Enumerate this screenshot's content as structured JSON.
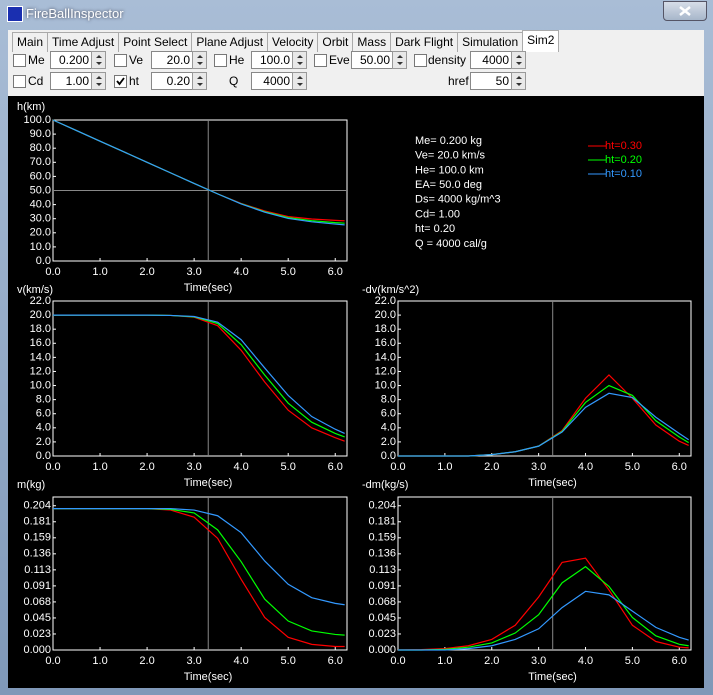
{
  "window": {
    "title": "FireBallInspector"
  },
  "tabs": {
    "items": [
      "Main",
      "Time Adjust",
      "Point Select",
      "Plane Adjust",
      "Velocity",
      "Orbit",
      "Mass",
      "Dark Flight",
      "Simulation",
      "Sim2"
    ],
    "active": 9
  },
  "controls": [
    {
      "label": "Me",
      "value": "0.200",
      "checked": false
    },
    {
      "label": "Ve",
      "value": "20.0",
      "checked": false
    },
    {
      "label": "He",
      "value": "100.0",
      "checked": false
    },
    {
      "label": "Eve",
      "value": "50.00",
      "checked": false
    },
    {
      "label": "density",
      "value": "4000",
      "checked": false
    },
    {
      "label": "Cd",
      "value": "1.00",
      "checked": false
    },
    {
      "label": "ht",
      "value": "0.20",
      "checked": true
    },
    {
      "label": "Q",
      "value": "4000"
    },
    {
      "label": "href",
      "value": "50"
    }
  ],
  "chart_data": [
    {
      "type": "line",
      "ylabel": "h(km)",
      "xlabel": "Time(sec)",
      "xlim": [
        0,
        6.25
      ],
      "ylim": [
        0,
        100
      ],
      "xticks": [
        {
          "value": 0,
          "label": "0.0"
        },
        {
          "value": 1,
          "label": "1.0"
        },
        {
          "value": 2,
          "label": "2.0"
        },
        {
          "value": 3,
          "label": "3.0"
        },
        {
          "value": 4,
          "label": "4.0"
        },
        {
          "value": 5,
          "label": "5.0"
        },
        {
          "value": 6,
          "label": "6.0"
        }
      ],
      "yticks": [
        {
          "value": 0,
          "label": "0.0"
        },
        {
          "value": 10,
          "label": "10.0"
        },
        {
          "value": 20,
          "label": "20.0"
        },
        {
          "value": 30,
          "label": "30.0"
        },
        {
          "value": 40,
          "label": "40.0"
        },
        {
          "value": 50,
          "label": "50.0"
        },
        {
          "value": 60,
          "label": "60.0"
        },
        {
          "value": 70,
          "label": "70.0"
        },
        {
          "value": 80,
          "label": "80.0"
        },
        {
          "value": 90,
          "label": "90.0"
        },
        {
          "value": 100,
          "label": "100.0"
        }
      ],
      "cursor_x": 3.3,
      "cursor_y": 50,
      "annotations": [
        "Me= 0.200 kg",
        "Ve= 20.0 km/s",
        "He= 100.0 km",
        "EA= 50.0 deg",
        "Ds= 4000 kg/m^3",
        "Cd= 1.00",
        "ht= 0.20",
        "Q = 4000 cal/g"
      ],
      "x": [
        0,
        0.5,
        1,
        1.5,
        2,
        2.5,
        3,
        3.5,
        4,
        4.5,
        5,
        5.5,
        6,
        6.2
      ],
      "series": [
        {
          "name": "ht=0.30",
          "color": "#ff0000",
          "values": [
            100,
            92.5,
            85,
            77.5,
            70,
            62.5,
            55,
            47.6,
            40.8,
            35.5,
            31.5,
            29.8,
            28.8,
            28.5
          ]
        },
        {
          "name": "ht=0.20",
          "color": "#00ff00",
          "values": [
            100,
            92.5,
            85,
            77.5,
            70,
            62.5,
            55,
            47.6,
            40.6,
            35,
            30.8,
            28.6,
            27.2,
            26.8
          ]
        },
        {
          "name": "ht=0.10",
          "color": "#3399ff",
          "values": [
            100,
            92.5,
            85,
            77.5,
            70,
            62.5,
            55,
            47.6,
            40.5,
            34.6,
            30.2,
            27.8,
            26.2,
            25.6
          ]
        }
      ]
    },
    {
      "type": "line",
      "ylabel": "v(km/s)",
      "xlabel": "Time(sec)",
      "xlim": [
        0,
        6.25
      ],
      "ylim": [
        0,
        22
      ],
      "xticks": [
        {
          "value": 0,
          "label": "0.0"
        },
        {
          "value": 1,
          "label": "1.0"
        },
        {
          "value": 2,
          "label": "2.0"
        },
        {
          "value": 3,
          "label": "3.0"
        },
        {
          "value": 4,
          "label": "4.0"
        },
        {
          "value": 5,
          "label": "5.0"
        },
        {
          "value": 6,
          "label": "6.0"
        }
      ],
      "yticks": [
        {
          "value": 0,
          "label": "0.0"
        },
        {
          "value": 2,
          "label": "2.0"
        },
        {
          "value": 4,
          "label": "4.0"
        },
        {
          "value": 6,
          "label": "6.0"
        },
        {
          "value": 8,
          "label": "8.0"
        },
        {
          "value": 10,
          "label": "10.0"
        },
        {
          "value": 12,
          "label": "12.0"
        },
        {
          "value": 14,
          "label": "14.0"
        },
        {
          "value": 16,
          "label": "16.0"
        },
        {
          "value": 18,
          "label": "18.0"
        },
        {
          "value": 20,
          "label": "20.0"
        },
        {
          "value": 22,
          "label": "22.0"
        }
      ],
      "cursor_x": 3.3,
      "x": [
        0,
        0.5,
        1,
        1.5,
        2,
        2.5,
        3,
        3.5,
        4,
        4.5,
        5,
        5.5,
        6,
        6.2
      ],
      "series": [
        {
          "color": "#ff0000",
          "values": [
            20,
            20,
            20,
            20,
            20,
            19.95,
            19.7,
            18.5,
            15,
            10.5,
            6.5,
            4,
            2.6,
            2.1
          ]
        },
        {
          "color": "#00ff00",
          "values": [
            20,
            20,
            20,
            20,
            20,
            19.95,
            19.75,
            18.8,
            15.8,
            11.5,
            7.5,
            4.8,
            3.2,
            2.7
          ]
        },
        {
          "color": "#3399ff",
          "values": [
            20,
            20,
            20,
            20,
            20,
            19.95,
            19.8,
            19,
            16.5,
            12.5,
            8.6,
            5.6,
            3.8,
            3.2
          ]
        }
      ]
    },
    {
      "type": "line",
      "ylabel": "-dv(km/s^2)",
      "xlabel": "Time(sec)",
      "xlim": [
        0,
        6.25
      ],
      "ylim": [
        0,
        22
      ],
      "xticks": [
        {
          "value": 0,
          "label": "0.0"
        },
        {
          "value": 1,
          "label": "1.0"
        },
        {
          "value": 2,
          "label": "2.0"
        },
        {
          "value": 3,
          "label": "3.0"
        },
        {
          "value": 4,
          "label": "4.0"
        },
        {
          "value": 5,
          "label": "5.0"
        },
        {
          "value": 6,
          "label": "6.0"
        }
      ],
      "yticks": [
        {
          "value": 0,
          "label": "0.0"
        },
        {
          "value": 2,
          "label": "2.0"
        },
        {
          "value": 4,
          "label": "4.0"
        },
        {
          "value": 6,
          "label": "6.0"
        },
        {
          "value": 8,
          "label": "8.0"
        },
        {
          "value": 10,
          "label": "10.0"
        },
        {
          "value": 12,
          "label": "12.0"
        },
        {
          "value": 14,
          "label": "14.0"
        },
        {
          "value": 16,
          "label": "16.0"
        },
        {
          "value": 18,
          "label": "18.0"
        },
        {
          "value": 20,
          "label": "20.0"
        },
        {
          "value": 22,
          "label": "22.0"
        }
      ],
      "cursor_x": 3.3,
      "x": [
        0,
        0.5,
        1,
        1.5,
        2,
        2.5,
        3,
        3.5,
        4,
        4.5,
        5,
        5.5,
        6,
        6.2
      ],
      "series": [
        {
          "color": "#ff0000",
          "values": [
            0,
            0,
            0,
            0,
            0.2,
            0.6,
            1.4,
            3.6,
            8.2,
            11.5,
            8.2,
            4.4,
            2.1,
            1.5
          ]
        },
        {
          "color": "#00ff00",
          "values": [
            0,
            0,
            0,
            0,
            0.2,
            0.6,
            1.4,
            3.5,
            7.6,
            10,
            8.6,
            5,
            2.7,
            1.9
          ]
        },
        {
          "color": "#3399ff",
          "values": [
            0,
            0,
            0,
            0,
            0.2,
            0.6,
            1.4,
            3.4,
            6.9,
            8.9,
            8.3,
            5.5,
            3.2,
            2.3
          ]
        }
      ]
    },
    {
      "type": "line",
      "ylabel": "m(kg)",
      "xlabel": "Time(sec)",
      "xlim": [
        0,
        6.25
      ],
      "ylim": [
        0,
        0.2165
      ],
      "xticks": [
        {
          "value": 0,
          "label": "0.0"
        },
        {
          "value": 1,
          "label": "1.0"
        },
        {
          "value": 2,
          "label": "2.0"
        },
        {
          "value": 3,
          "label": "3.0"
        },
        {
          "value": 4,
          "label": "4.0"
        },
        {
          "value": 5,
          "label": "5.0"
        },
        {
          "value": 6,
          "label": "6.0"
        }
      ],
      "yticks": [
        {
          "value": 0,
          "label": "0.000"
        },
        {
          "value": 0.02268,
          "label": "0.023"
        },
        {
          "value": 0.04536,
          "label": "0.045"
        },
        {
          "value": 0.06804,
          "label": "0.068"
        },
        {
          "value": 0.09072,
          "label": "0.091"
        },
        {
          "value": 0.1134,
          "label": "0.113"
        },
        {
          "value": 0.13608,
          "label": "0.136"
        },
        {
          "value": 0.15876,
          "label": "0.159"
        },
        {
          "value": 0.18144,
          "label": "0.181"
        },
        {
          "value": 0.20412,
          "label": "0.204"
        }
      ],
      "cursor_x": 3.3,
      "x": [
        0,
        0.5,
        1,
        1.5,
        2,
        2.5,
        3,
        3.5,
        4,
        4.5,
        5,
        5.5,
        6,
        6.2
      ],
      "series": [
        {
          "color": "#ff0000",
          "values": [
            0.2,
            0.2,
            0.2,
            0.2,
            0.2,
            0.198,
            0.188,
            0.158,
            0.1,
            0.046,
            0.018,
            0.008,
            0.005,
            0.005
          ]
        },
        {
          "color": "#00ff00",
          "values": [
            0.2,
            0.2,
            0.2,
            0.2,
            0.2,
            0.199,
            0.194,
            0.17,
            0.125,
            0.072,
            0.041,
            0.027,
            0.022,
            0.021
          ]
        },
        {
          "color": "#3399ff",
          "values": [
            0.2,
            0.2,
            0.2,
            0.2,
            0.2,
            0.2,
            0.198,
            0.19,
            0.166,
            0.126,
            0.093,
            0.074,
            0.066,
            0.064
          ]
        }
      ]
    },
    {
      "type": "line",
      "ylabel": "-dm(kg/s)",
      "xlabel": "Time(sec)",
      "xlim": [
        0,
        6.25
      ],
      "ylim": [
        0,
        0.2165
      ],
      "xticks": [
        {
          "value": 0,
          "label": "0.0"
        },
        {
          "value": 1,
          "label": "1.0"
        },
        {
          "value": 2,
          "label": "2.0"
        },
        {
          "value": 3,
          "label": "3.0"
        },
        {
          "value": 4,
          "label": "4.0"
        },
        {
          "value": 5,
          "label": "5.0"
        },
        {
          "value": 6,
          "label": "6.0"
        }
      ],
      "yticks": [
        {
          "value": 0,
          "label": "0.000"
        },
        {
          "value": 0.02268,
          "label": "0.023"
        },
        {
          "value": 0.04536,
          "label": "0.045"
        },
        {
          "value": 0.06804,
          "label": "0.068"
        },
        {
          "value": 0.09072,
          "label": "0.091"
        },
        {
          "value": 0.1134,
          "label": "0.113"
        },
        {
          "value": 0.13608,
          "label": "0.136"
        },
        {
          "value": 0.15876,
          "label": "0.159"
        },
        {
          "value": 0.18144,
          "label": "0.181"
        },
        {
          "value": 0.20412,
          "label": "0.204"
        }
      ],
      "cursor_x": 3.3,
      "x": [
        0,
        0.5,
        1,
        1.5,
        2,
        2.5,
        3,
        3.5,
        4,
        4.5,
        5,
        5.5,
        6,
        6.2
      ],
      "series": [
        {
          "color": "#ff0000",
          "values": [
            0,
            0.0005,
            0.002,
            0.006,
            0.015,
            0.035,
            0.075,
            0.124,
            0.13,
            0.085,
            0.035,
            0.012,
            0.004,
            0.003
          ]
        },
        {
          "color": "#00ff00",
          "values": [
            0,
            0,
            0.001,
            0.004,
            0.01,
            0.024,
            0.05,
            0.095,
            0.118,
            0.09,
            0.046,
            0.02,
            0.008,
            0.006
          ]
        },
        {
          "color": "#3399ff",
          "values": [
            0,
            0,
            0,
            0.002,
            0.006,
            0.015,
            0.03,
            0.06,
            0.083,
            0.078,
            0.055,
            0.032,
            0.018,
            0.014
          ]
        }
      ]
    }
  ]
}
